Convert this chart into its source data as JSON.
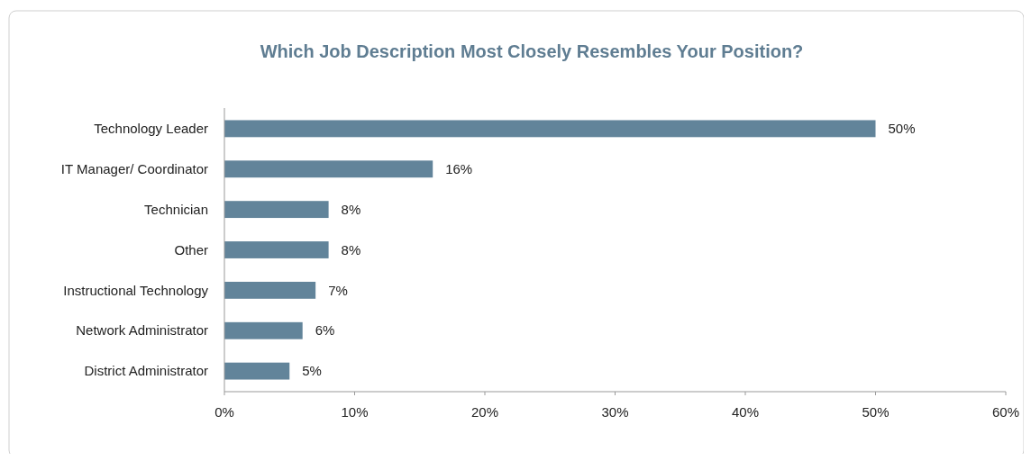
{
  "chart_data": {
    "type": "bar",
    "orientation": "horizontal",
    "title": "Which Job Description Most Closely Resembles Your Position?",
    "categories": [
      "Technology Leader",
      "IT Manager/ Coordinator",
      "Technician",
      "Other",
      "Instructional Technology",
      "Network Administrator",
      "District Administrator"
    ],
    "values": [
      50,
      16,
      8,
      8,
      7,
      6,
      5
    ],
    "value_labels": [
      "50%",
      "16%",
      "8%",
      "8%",
      "7%",
      "6%",
      "5%"
    ],
    "color": "#62849a",
    "xlim": [
      0,
      60
    ],
    "xticks": [
      {
        "value": 0,
        "label": "0%"
      },
      {
        "value": 10,
        "label": "10%"
      },
      {
        "value": 20,
        "label": "20%"
      },
      {
        "value": 30,
        "label": "30%"
      },
      {
        "value": 40,
        "label": "40%"
      },
      {
        "value": 50,
        "label": "50%"
      },
      {
        "value": 60,
        "label": "60%"
      }
    ],
    "grid": false
  }
}
